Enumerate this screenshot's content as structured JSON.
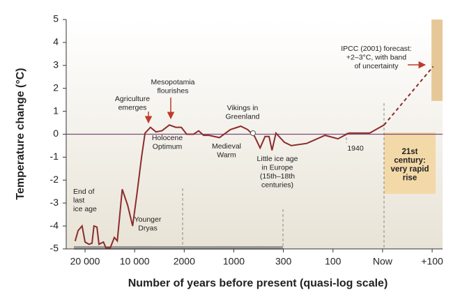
{
  "chart_data": {
    "type": "line",
    "y_label": "Temperature change (°C)",
    "x_label": "Number of years before present (quasi-log scale)",
    "xlim": [
      -0.38,
      7.21
    ],
    "xticks": [
      {
        "value": 0,
        "label": "20 000"
      },
      {
        "value": 1,
        "label": "10 000"
      },
      {
        "value": 2,
        "label": "2000"
      },
      {
        "value": 3,
        "label": "1000"
      },
      {
        "value": 4,
        "label": "300"
      },
      {
        "value": 5,
        "label": "100"
      },
      {
        "value": 6,
        "label": "Now"
      },
      {
        "value": 7,
        "label": "+100"
      }
    ],
    "ylim": [
      -5,
      5
    ],
    "yticks": [
      5,
      4,
      3,
      2,
      1,
      0,
      -1,
      -2,
      -3,
      -4,
      -5
    ],
    "series": [
      {
        "name": null,
        "color": "#8b2c2c",
        "dashed": false,
        "x": [
          -0.2,
          -0.14,
          -0.06,
          0,
          0.08,
          0.14,
          0.18,
          0.24,
          0.28,
          0.37,
          0.42,
          0.51,
          0.59,
          0.65,
          0.75,
          0.86,
          0.96,
          1.05,
          1.14,
          1.21,
          1.32,
          1.43,
          1.55,
          1.7,
          1.83,
          1.94,
          2.05,
          2.19,
          2.29,
          2.39,
          2.5,
          2.71,
          2.93,
          3.14,
          3.28,
          3.42,
          3.53,
          3.63,
          3.71,
          3.77,
          3.85,
          4.02,
          4.16,
          4.47,
          4.84,
          5.1,
          5.32,
          5.74,
          6.03
        ],
        "values": [
          -4.66,
          -4.2,
          -4.0,
          -4.7,
          -4.8,
          -4.75,
          -4.0,
          -4.05,
          -4.8,
          -4.7,
          -4.95,
          -4.95,
          -4.5,
          -4.65,
          -2.4,
          -3.1,
          -4.0,
          -2.55,
          -1.0,
          0.05,
          0.3,
          0.1,
          0.15,
          0.4,
          0.3,
          0.3,
          0.0,
          0.0,
          0.15,
          -0.05,
          -0.05,
          -0.15,
          0.2,
          0.35,
          0.2,
          -0.1,
          -0.6,
          -0.1,
          -0.1,
          -0.7,
          0.05,
          -0.35,
          -0.5,
          -0.4,
          -0.05,
          -0.2,
          0.05,
          0.05,
          0.4
        ]
      },
      {
        "name": null,
        "color": "#8b2c2c",
        "dashed": true,
        "x": [
          6.03,
          7.02
        ],
        "values": [
          0.4,
          2.95
        ]
      }
    ],
    "forecast_band": {
      "x": 7.0,
      "low": 1.45,
      "high": 5
    },
    "annotations": [
      [
        "End of",
        "last",
        "ice age"
      ],
      [
        "Younger",
        "Dryas"
      ],
      [
        "Agriculture",
        "emerges"
      ],
      [
        "Mesopotamia",
        "flourishes"
      ],
      [
        "Holocene",
        "Optimum"
      ],
      [
        "Vikings in",
        "Greenland"
      ],
      [
        "Medieval",
        "Warm"
      ],
      [
        "Little ice age",
        "in Europe",
        "(15th–18th",
        "centuries)"
      ],
      [
        "1940"
      ],
      [
        "21st",
        "century:",
        "very rapid",
        "rise"
      ],
      [
        "IPCC (2001) forecast:",
        "+2–3°C, with band",
        "of uncertainty"
      ]
    ]
  }
}
